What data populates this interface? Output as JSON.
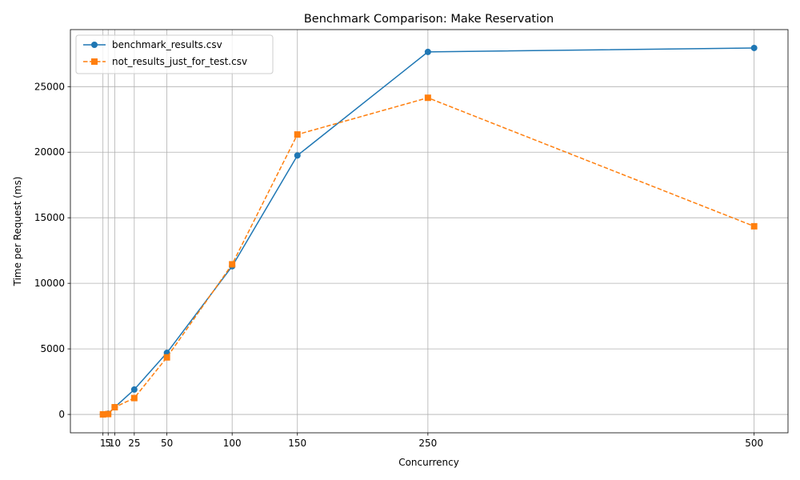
{
  "chart_data": {
    "type": "line",
    "title": "Benchmark Comparison: Make Reservation",
    "xlabel": "Concurrency",
    "ylabel": "Time per Request (ms)",
    "x_ticks": [
      1,
      5,
      10,
      25,
      50,
      100,
      150,
      250,
      500
    ],
    "y_ticks": [
      0,
      5000,
      10000,
      15000,
      20000,
      25000
    ],
    "xlim": [
      -23.95,
      525.95
    ],
    "ylim": [
      -1400,
      29350
    ],
    "grid": true,
    "legend_position": "top-left",
    "series": [
      {
        "name": "benchmark_results.csv",
        "color": "#1f77b4",
        "marker": "circle",
        "linestyle": "solid",
        "x": [
          1,
          5,
          10,
          25,
          50,
          100,
          150,
          250,
          500
        ],
        "y": [
          10,
          60,
          550,
          1900,
          4700,
          11300,
          19750,
          27650,
          27950
        ]
      },
      {
        "name": "not_results_just_for_test.csv",
        "color": "#ff7f0e",
        "marker": "square",
        "linestyle": "dashed",
        "x": [
          1,
          5,
          10,
          25,
          50,
          100,
          150,
          250,
          500
        ],
        "y": [
          5,
          30,
          550,
          1250,
          4350,
          11450,
          21350,
          24150,
          14350
        ]
      }
    ]
  }
}
